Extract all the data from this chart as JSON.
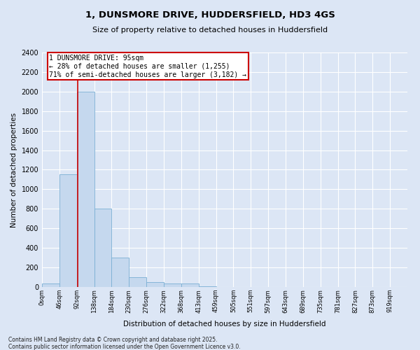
{
  "title1": "1, DUNSMORE DRIVE, HUDDERSFIELD, HD3 4GS",
  "title2": "Size of property relative to detached houses in Huddersfield",
  "xlabel": "Distribution of detached houses by size in Huddersfield",
  "ylabel": "Number of detached properties",
  "bar_color": "#c5d8ee",
  "bar_edge_color": "#7aafd4",
  "background_color": "#dce6f5",
  "plot_bg_color": "#dce6f5",
  "grid_color": "#ffffff",
  "bin_labels": [
    "0sqm",
    "46sqm",
    "92sqm",
    "138sqm",
    "184sqm",
    "230sqm",
    "276sqm",
    "322sqm",
    "368sqm",
    "413sqm",
    "459sqm",
    "505sqm",
    "551sqm",
    "597sqm",
    "643sqm",
    "689sqm",
    "735sqm",
    "781sqm",
    "827sqm",
    "873sqm",
    "919sqm"
  ],
  "bar_values": [
    35,
    1150,
    2000,
    800,
    300,
    100,
    50,
    35,
    35,
    10,
    3,
    2,
    1,
    1,
    0,
    0,
    0,
    0,
    0,
    0
  ],
  "property_line_x": 95,
  "property_line_color": "#cc0000",
  "annotation_title": "1 DUNSMORE DRIVE: 95sqm",
  "annotation_line1": "← 28% of detached houses are smaller (1,255)",
  "annotation_line2": "71% of semi-detached houses are larger (3,182) →",
  "annotation_box_color": "#ffffff",
  "annotation_edge_color": "#cc0000",
  "ylim": [
    0,
    2400
  ],
  "yticks": [
    0,
    200,
    400,
    600,
    800,
    1000,
    1200,
    1400,
    1600,
    1800,
    2000,
    2200,
    2400
  ],
  "bin_width": 46,
  "footnote1": "Contains HM Land Registry data © Crown copyright and database right 2025.",
  "footnote2": "Contains public sector information licensed under the Open Government Licence v3.0."
}
